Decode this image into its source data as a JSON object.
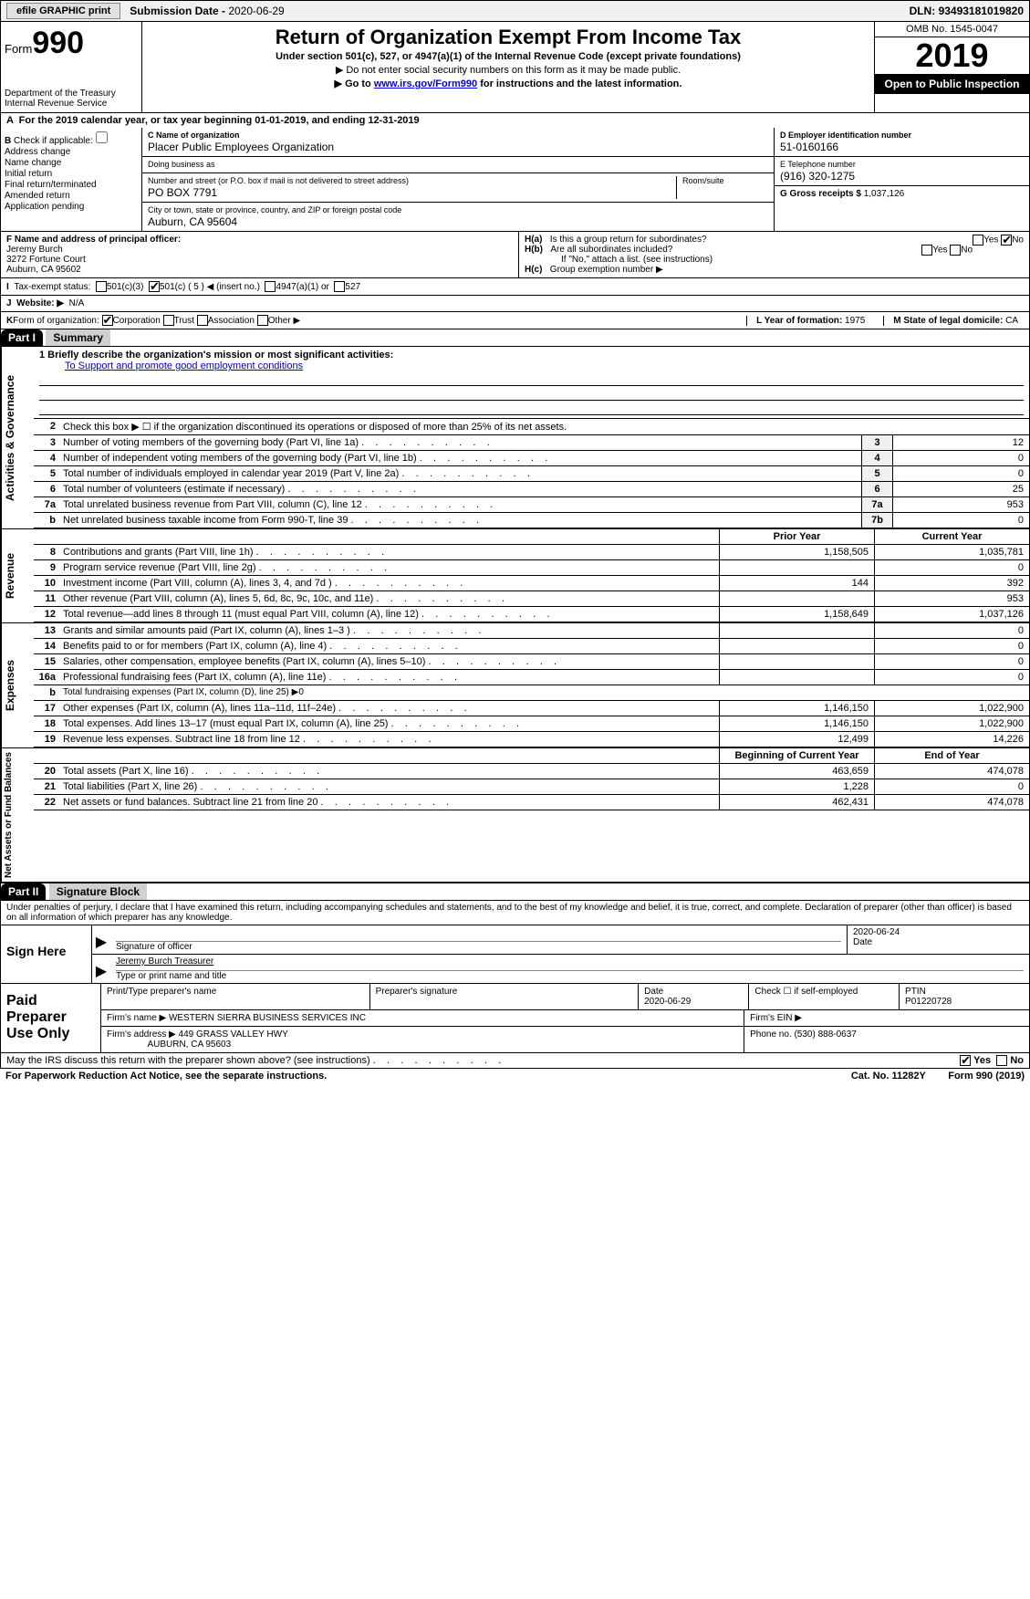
{
  "topbar": {
    "efile": "efile GRAPHIC print",
    "submission_label": "Submission Date - ",
    "submission_date": "2020-06-29",
    "dln_label": "DLN: ",
    "dln": "93493181019820"
  },
  "header": {
    "form_word": "Form",
    "form_num": "990",
    "dept": "Department of the Treasury",
    "irs": "Internal Revenue Service",
    "title": "Return of Organization Exempt From Income Tax",
    "sub": "Under section 501(c), 527, or 4947(a)(1) of the Internal Revenue Code (except private foundations)",
    "note1": "▶ Do not enter social security numbers on this form as it may be made public.",
    "note2_pre": "▶ Go to ",
    "note2_link": "www.irs.gov/Form990",
    "note2_post": " for instructions and the latest information.",
    "omb": "OMB No. 1545-0047",
    "year": "2019",
    "open": "Open to Public Inspection"
  },
  "row_a": {
    "text_pre": "For the 2019 calendar year, or tax year beginning ",
    "begin": "01-01-2019",
    "mid": ", and ending ",
    "end": "12-31-2019"
  },
  "col_b": {
    "label": "Check if applicable:",
    "items": [
      "Address change",
      "Name change",
      "Initial return",
      "Final return/terminated",
      "Amended return",
      "Application pending"
    ]
  },
  "org": {
    "c_label": "C Name of organization",
    "name": "Placer Public Employees Organization",
    "dba_label": "Doing business as",
    "dba": "",
    "addr_label": "Number and street (or P.O. box if mail is not delivered to street address)",
    "room_label": "Room/suite",
    "addr": "PO BOX 7791",
    "city_label": "City or town, state or province, country, and ZIP or foreign postal code",
    "city": "Auburn, CA   95604"
  },
  "right": {
    "d_label": "D Employer identification number",
    "ein": "51-0160166",
    "e_label": "E Telephone number",
    "phone": "(916) 320-1275",
    "g_label": "G Gross receipts $ ",
    "gross": "1,037,126"
  },
  "f": {
    "label": "F  Name and address of principal officer:",
    "name": "Jeremy Burch",
    "addr1": "3272 Fortune Court",
    "addr2": "Auburn, CA   95602"
  },
  "h": {
    "a_label": "H(a)",
    "a_text": "Is this a group return for subordinates?",
    "b_label": "H(b)",
    "b_text": "Are all subordinates included?",
    "b_note": "If \"No,\" attach a list. (see instructions)",
    "c_label": "H(c)",
    "c_text": "Group exemption number ▶",
    "yes": "Yes",
    "no": "No"
  },
  "i": {
    "label": "Tax-exempt status:",
    "opts": [
      "501(c)(3)",
      "501(c) ( 5 ) ◀ (insert no.)",
      "4947(a)(1) or",
      "527"
    ]
  },
  "j": {
    "label": "Website: ▶",
    "val": "N/A"
  },
  "k": {
    "label": "Form of organization:",
    "opts": [
      "Corporation",
      "Trust",
      "Association",
      "Other ▶"
    ],
    "l_label": "L Year of formation: ",
    "l_val": "1975",
    "m_label": "M State of legal domicile: ",
    "m_val": "CA"
  },
  "part1": {
    "hdr": "Part I",
    "title": "Summary"
  },
  "mission": {
    "label": "1  Briefly describe the organization's mission or most significant activities:",
    "text": "To Support and promote good employment conditions"
  },
  "gov_lines": [
    {
      "n": "2",
      "d": "Check this box ▶ ☐ if the organization discontinued its operations or disposed of more than 25% of its net assets."
    },
    {
      "n": "3",
      "d": "Number of voting members of the governing body (Part VI, line 1a)",
      "c": "3",
      "v": "12"
    },
    {
      "n": "4",
      "d": "Number of independent voting members of the governing body (Part VI, line 1b)",
      "c": "4",
      "v": "0"
    },
    {
      "n": "5",
      "d": "Total number of individuals employed in calendar year 2019 (Part V, line 2a)",
      "c": "5",
      "v": "0"
    },
    {
      "n": "6",
      "d": "Total number of volunteers (estimate if necessary)",
      "c": "6",
      "v": "25"
    },
    {
      "n": "7a",
      "d": "Total unrelated business revenue from Part VIII, column (C), line 12",
      "c": "7a",
      "v": "953"
    },
    {
      "n": "b",
      "d": "Net unrelated business taxable income from Form 990-T, line 39",
      "c": "7b",
      "v": "0"
    }
  ],
  "prior_hdr": {
    "prior": "Prior Year",
    "current": "Current Year"
  },
  "revenue_label": "Revenue",
  "revenue_lines": [
    {
      "n": "8",
      "d": "Contributions and grants (Part VIII, line 1h)",
      "p": "1,158,505",
      "c": "1,035,781"
    },
    {
      "n": "9",
      "d": "Program service revenue (Part VIII, line 2g)",
      "p": "",
      "c": "0"
    },
    {
      "n": "10",
      "d": "Investment income (Part VIII, column (A), lines 3, 4, and 7d )",
      "p": "144",
      "c": "392"
    },
    {
      "n": "11",
      "d": "Other revenue (Part VIII, column (A), lines 5, 6d, 8c, 9c, 10c, and 11e)",
      "p": "",
      "c": "953"
    },
    {
      "n": "12",
      "d": "Total revenue—add lines 8 through 11 (must equal Part VIII, column (A), line 12)",
      "p": "1,158,649",
      "c": "1,037,126"
    }
  ],
  "expenses_label": "Expenses",
  "expense_lines": [
    {
      "n": "13",
      "d": "Grants and similar amounts paid (Part IX, column (A), lines 1–3 )",
      "p": "",
      "c": "0"
    },
    {
      "n": "14",
      "d": "Benefits paid to or for members (Part IX, column (A), line 4)",
      "p": "",
      "c": "0"
    },
    {
      "n": "15",
      "d": "Salaries, other compensation, employee benefits (Part IX, column (A), lines 5–10)",
      "p": "",
      "c": "0"
    },
    {
      "n": "16a",
      "d": "Professional fundraising fees (Part IX, column (A), line 11e)",
      "p": "",
      "c": "0"
    },
    {
      "n": "b",
      "d": "Total fundraising expenses (Part IX, column (D), line 25) ▶0",
      "p": null,
      "c": null
    },
    {
      "n": "17",
      "d": "Other expenses (Part IX, column (A), lines 11a–11d, 11f–24e)",
      "p": "1,146,150",
      "c": "1,022,900"
    },
    {
      "n": "18",
      "d": "Total expenses. Add lines 13–17 (must equal Part IX, column (A), line 25)",
      "p": "1,146,150",
      "c": "1,022,900"
    },
    {
      "n": "19",
      "d": "Revenue less expenses. Subtract line 18 from line 12",
      "p": "12,499",
      "c": "14,226"
    }
  ],
  "net_label": "Net Assets or Fund Balances",
  "net_hdr": {
    "begin": "Beginning of Current Year",
    "end": "End of Year"
  },
  "net_lines": [
    {
      "n": "20",
      "d": "Total assets (Part X, line 16)",
      "p": "463,659",
      "c": "474,078"
    },
    {
      "n": "21",
      "d": "Total liabilities (Part X, line 26)",
      "p": "1,228",
      "c": "0"
    },
    {
      "n": "22",
      "d": "Net assets or fund balances. Subtract line 21 from line 20",
      "p": "462,431",
      "c": "474,078"
    }
  ],
  "part2": {
    "hdr": "Part II",
    "title": "Signature Block"
  },
  "perjury": "Under penalties of perjury, I declare that I have examined this return, including accompanying schedules and statements, and to the best of my knowledge and belief, it is true, correct, and complete. Declaration of preparer (other than officer) is based on all information of which preparer has any knowledge.",
  "sign": {
    "here": "Sign Here",
    "sig_label": "Signature of officer",
    "date_label": "Date",
    "date": "2020-06-24",
    "name_label": "Type or print name and title",
    "name": "Jeremy Burch Treasurer"
  },
  "paid": {
    "label": "Paid Preparer Use Only",
    "h1": "Print/Type preparer's name",
    "h2": "Preparer's signature",
    "h3": "Date",
    "date": "2020-06-29",
    "h4": "Check ☐ if self-employed",
    "h5": "PTIN",
    "ptin": "P01220728",
    "firm_label": "Firm's name    ▶",
    "firm": "WESTERN SIERRA BUSINESS SERVICES INC",
    "ein_label": "Firm's EIN ▶",
    "addr_label": "Firm's address ▶",
    "addr1": "449 GRASS VALLEY HWY",
    "addr2": "AUBURN, CA   95603",
    "phone_label": "Phone no. ",
    "phone": "(530) 888-0637"
  },
  "footer": {
    "discuss": "May the IRS discuss this return with the preparer shown above? (see instructions)",
    "yes": "Yes",
    "no": "No"
  },
  "bottom": {
    "notice": "For Paperwork Reduction Act Notice, see the separate instructions.",
    "cat": "Cat. No. 11282Y",
    "form": "Form 990 (2019)"
  },
  "side_labels": {
    "gov": "Activities & Governance"
  }
}
